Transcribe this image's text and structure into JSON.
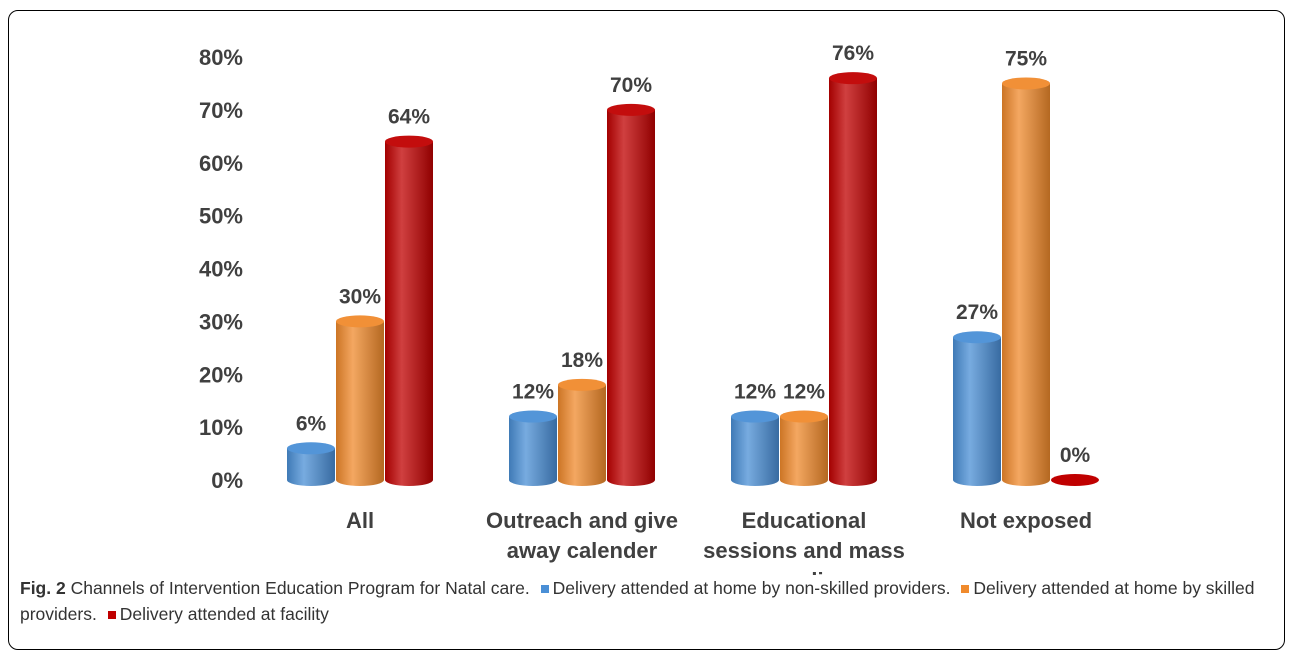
{
  "chart_data": {
    "type": "bar",
    "style": "3d-cylinder",
    "categories": [
      [
        "All"
      ],
      [
        "Outreach and give",
        "away calender"
      ],
      [
        "Educational",
        "sessions and mass",
        "media"
      ],
      [
        "Not exposed"
      ]
    ],
    "series": [
      {
        "name": "Delivery attended at home by non-skilled providers",
        "color": "#4a8fd6",
        "values": [
          6,
          12,
          12,
          27
        ],
        "labels": [
          "6%",
          "12%",
          "12%",
          "27%"
        ]
      },
      {
        "name": "Delivery attended at home by skilled providers",
        "color": "#f08a2c",
        "values": [
          30,
          18,
          12,
          75
        ],
        "labels": [
          "30%",
          "18%",
          "12%",
          "75%"
        ]
      },
      {
        "name": "Delivery attended at facility",
        "color": "#c00000",
        "values": [
          64,
          70,
          76,
          0
        ],
        "labels": [
          "64%",
          "70%",
          "76%",
          "0%"
        ]
      }
    ],
    "y_ticks": [
      "0%",
      "10%",
      "20%",
      "30%",
      "40%",
      "50%",
      "60%",
      "70%",
      "80%"
    ],
    "ylim": [
      0,
      80
    ],
    "grid": false,
    "legend": "caption"
  },
  "caption": {
    "fig_label": "Fig. 2",
    "title": "Channels of Intervention Education Program for Natal care.",
    "legend_items": [
      {
        "text": "Delivery attended at home by non-skilled providers.",
        "color": "#4a8fd6"
      },
      {
        "text": "Delivery attended at home by skilled providers.",
        "color": "#f08a2c"
      },
      {
        "text": "Delivery attended at facility",
        "color": "#c00000"
      }
    ]
  }
}
